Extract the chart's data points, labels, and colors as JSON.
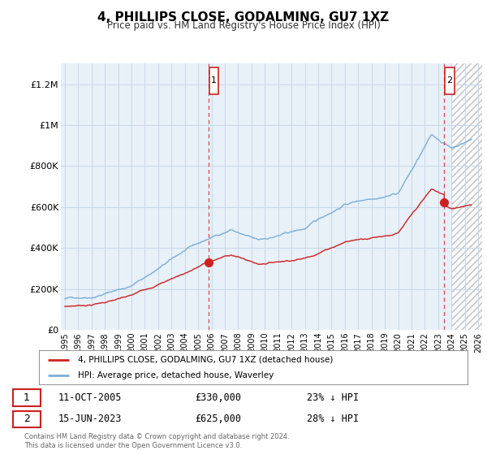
{
  "title": "4, PHILLIPS CLOSE, GODALMING, GU7 1XZ",
  "subtitle": "Price paid vs. HM Land Registry's House Price Index (HPI)",
  "ylabel_ticks": [
    "£0",
    "£200K",
    "£400K",
    "£600K",
    "£800K",
    "£1M",
    "£1.2M"
  ],
  "ytick_values": [
    0,
    200000,
    400000,
    600000,
    800000,
    1000000,
    1200000
  ],
  "ylim": [
    0,
    1300000
  ],
  "xlim_start": 1994.7,
  "xlim_end": 2026.3,
  "line1_color": "#cc2222",
  "line2_color": "#7aaed6",
  "marker1_date": 2005.78,
  "marker1_value": 330000,
  "marker2_date": 2023.45,
  "marker2_value": 625000,
  "vline1_x": 2005.78,
  "vline2_x": 2023.45,
  "hatch_start": 2024.0,
  "legend_line1": "4, PHILLIPS CLOSE, GODALMING, GU7 1XZ (detached house)",
  "legend_line2": "HPI: Average price, detached house, Waverley",
  "annotation1_num": "1",
  "annotation1_date": "11-OCT-2005",
  "annotation1_price": "£330,000",
  "annotation1_hpi": "23% ↓ HPI",
  "annotation2_num": "2",
  "annotation2_date": "15-JUN-2023",
  "annotation2_price": "£625,000",
  "annotation2_hpi": "28% ↓ HPI",
  "footer": "Contains HM Land Registry data © Crown copyright and database right 2024.\nThis data is licensed under the Open Government Licence v3.0.",
  "background_color": "#ffffff",
  "plot_bg_color": "#e8f0f8",
  "grid_color": "#c8d8e8",
  "xtick_years": [
    1995,
    1996,
    1997,
    1998,
    1999,
    2000,
    2001,
    2002,
    2003,
    2004,
    2005,
    2006,
    2007,
    2008,
    2009,
    2010,
    2011,
    2012,
    2013,
    2014,
    2015,
    2016,
    2017,
    2018,
    2019,
    2020,
    2021,
    2022,
    2023,
    2024,
    2025,
    2026
  ]
}
